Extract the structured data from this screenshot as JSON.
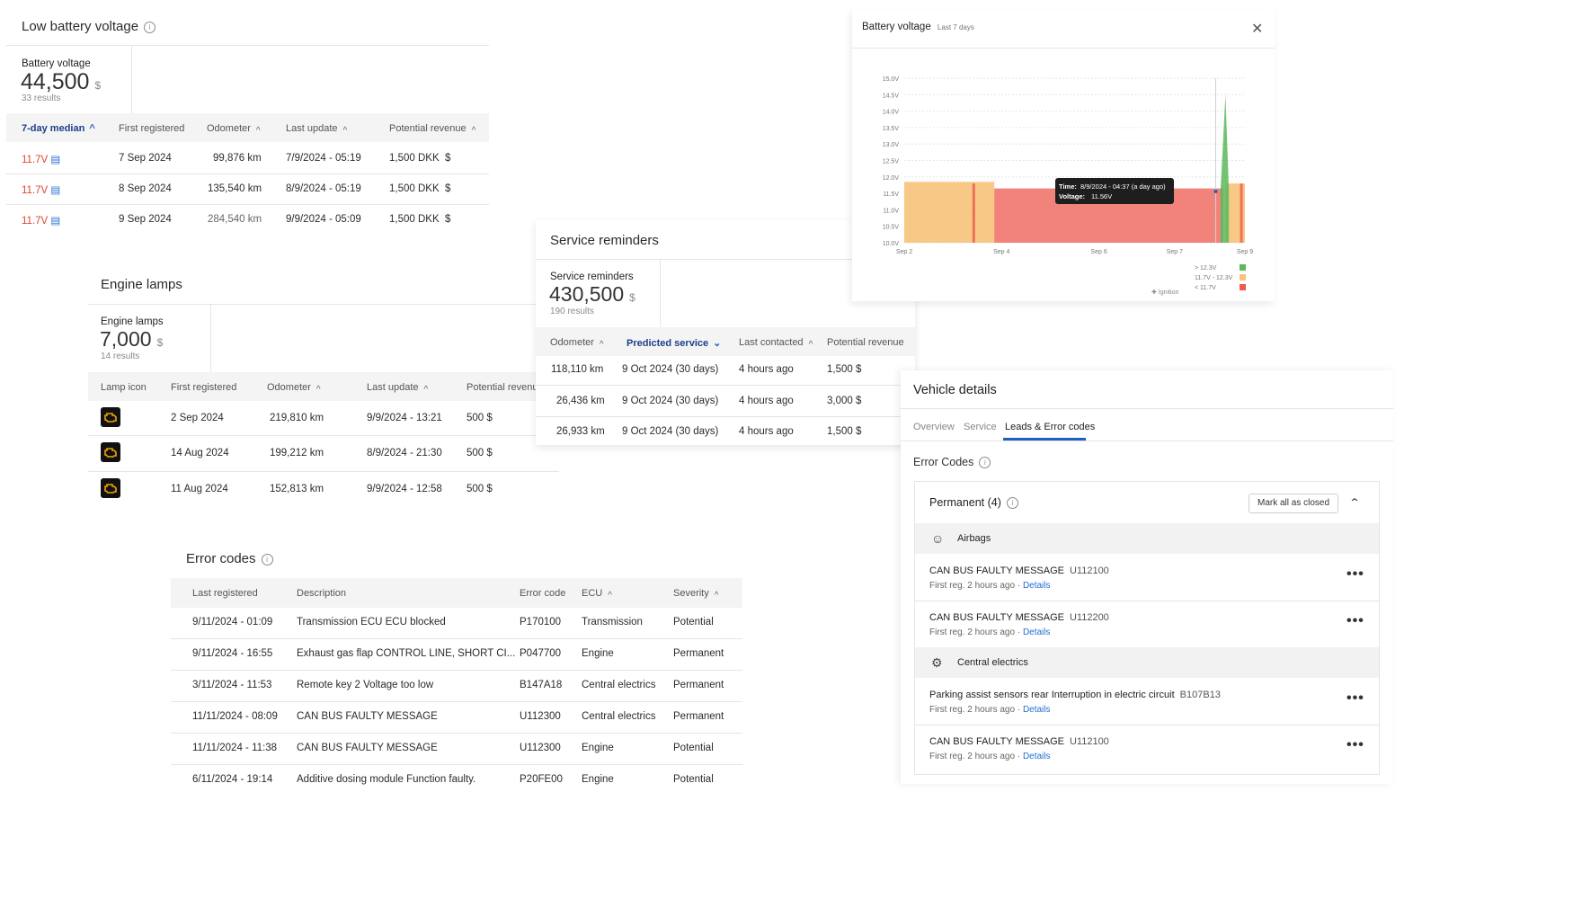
{
  "low_battery": {
    "title": "Low battery voltage",
    "stat_label": "Battery voltage",
    "stat_value": "44,500",
    "stat_unit": "$",
    "stat_sub": "33 results",
    "headers": [
      "7-day median",
      "First registered",
      "Odometer",
      "Last update",
      "Potential revenue"
    ],
    "rows": [
      {
        "median": "11.7V",
        "first": "7 Sep 2024",
        "odo": "99,876 km",
        "update": "7/9/2024 - 05:19",
        "rev": "1,500 DKK",
        "cur": "$"
      },
      {
        "median": "11.7V",
        "first": "8 Sep 2024",
        "odo": "135,540 km",
        "update": "8/9/2024 - 05:19",
        "rev": "1,500 DKK",
        "cur": "$"
      },
      {
        "median": "11.7V",
        "first": "9 Sep 2024",
        "odo": "284,540 km",
        "update": "9/9/2024 - 05:09",
        "rev": "1,500 DKK",
        "cur": "$"
      }
    ]
  },
  "engine_lamps": {
    "title": "Engine lamps",
    "stat_label": "Engine lamps",
    "stat_value": "7,000",
    "stat_unit": "$",
    "stat_sub": "14 results",
    "headers": [
      "Lamp icon",
      "First registered",
      "Odometer",
      "Last update",
      "Potential revenue"
    ],
    "rows": [
      {
        "first": "2 Sep 2024",
        "odo": "219,810 km",
        "update": "9/9/2024 - 13:21",
        "rev": "500 $"
      },
      {
        "first": "14 Aug 2024",
        "odo": "199,212 km",
        "update": "8/9/2024 - 21:30",
        "rev": "500 $"
      },
      {
        "first": "11 Aug 2024",
        "odo": "152,813 km",
        "update": "9/9/2024 - 12:58",
        "rev": "500 $"
      }
    ]
  },
  "service": {
    "title": "Service reminders",
    "stat_label": "Service reminders",
    "stat_value": "430,500",
    "stat_unit": "$",
    "stat_sub": "190 results",
    "headers": [
      "Odometer",
      "Predicted service",
      "Last contacted",
      "Potential revenue"
    ],
    "rows": [
      {
        "odo": "118,110 km",
        "pred": "9 Oct 2024 (30 days)",
        "contact": "4 hours ago",
        "rev": "1,500 $"
      },
      {
        "odo": "26,436 km",
        "pred": "9 Oct 2024 (30 days)",
        "contact": "4 hours ago",
        "rev": "3,000 $"
      },
      {
        "odo": "26,933 km",
        "pred": "9 Oct 2024 (30 days)",
        "contact": "4 hours ago",
        "rev": "1,500 $"
      }
    ]
  },
  "error_codes": {
    "title": "Error codes",
    "headers": [
      "Last registered",
      "Description",
      "Error code",
      "ECU",
      "Severity"
    ],
    "rows": [
      {
        "date": "9/11/2024 - 01:09",
        "desc": "Transmission ECU ECU blocked",
        "code": "P170100",
        "ecu": "Transmission",
        "sev": "Potential"
      },
      {
        "date": "9/11/2024 - 16:55",
        "desc": "Exhaust gas flap CONTROL LINE, SHORT CI...",
        "code": "P047700",
        "ecu": "Engine",
        "sev": "Permanent"
      },
      {
        "date": "3/11/2024 - 11:53",
        "desc": "Remote key 2 Voltage too low",
        "code": "B147A18",
        "ecu": "Central electrics",
        "sev": "Permanent"
      },
      {
        "date": "11/11/2024 - 08:09",
        "desc": "CAN BUS FAULTY MESSAGE",
        "code": "U112300",
        "ecu": "Central electrics",
        "sev": "Permanent"
      },
      {
        "date": "11/11/2024 - 11:38",
        "desc": "CAN BUS FAULTY MESSAGE",
        "code": "U112300",
        "ecu": "Engine",
        "sev": "Potential"
      },
      {
        "date": "6/11/2024 - 19:14",
        "desc": "Additive dosing module Function faulty.",
        "code": "P20FE00",
        "ecu": "Engine",
        "sev": "Potential"
      }
    ]
  },
  "battery_chart": {
    "title": "Battery voltage",
    "subtitle": "Last 7 days",
    "close_icon": "close-icon",
    "tooltip_time_label": "Time:",
    "tooltip_time": "8/9/2024 - 04:37 (a day ago)",
    "tooltip_voltage_label": "Voltage:",
    "tooltip_voltage": "11.56V",
    "legend": [
      {
        "label": "> 12.3V",
        "color": "#5cb85c"
      },
      {
        "label": "11.7V - 12.3V",
        "color": "#f7c27a"
      },
      {
        "label": "< 11.7V",
        "color": "#ee5a4e"
      }
    ],
    "ignition_label": "Ignition"
  },
  "chart_data": {
    "type": "area",
    "title": "Battery voltage",
    "subtitle": "Last 7 days",
    "ylim": [
      10.0,
      15.0
    ],
    "yticks": [
      "15.0V",
      "14.5V",
      "14.0V",
      "13.5V",
      "13.0V",
      "12.5V",
      "12.0V",
      "11.5V",
      "11.0V",
      "10.5V",
      "10.0V"
    ],
    "xticks": [
      "Sep 2",
      "Sep 4",
      "Sep 6",
      "Sep 7",
      "Sep 9"
    ],
    "grid": true,
    "legend_position": "bottom-right",
    "series": [
      {
        "name": "11.7V - 12.3V",
        "color": "#f7c27a",
        "x": [
          0,
          1.4,
          1.85,
          6.6,
          7.0
        ],
        "values": [
          11.85,
          11.8,
          11.8,
          11.8,
          11.75
        ]
      },
      {
        "name": "< 11.7V",
        "color": "#ee5a4e",
        "x": [
          1.85,
          3.0,
          5.0,
          6.6
        ],
        "values": [
          11.65,
          11.62,
          11.6,
          11.6
        ]
      },
      {
        "name": "> 12.3V",
        "color": "#5cb85c",
        "x": [
          6.55,
          6.6,
          6.65
        ],
        "values": [
          11.6,
          14.5,
          11.6
        ]
      }
    ]
  },
  "vehicle": {
    "title": "Vehicle details",
    "tabs": [
      "Overview",
      "Service",
      "Leads & Error codes"
    ],
    "section": "Error Codes",
    "group_title": "Permanent (4)",
    "mark_closed": "Mark all as closed",
    "categories": [
      {
        "name": "Airbags",
        "icon": "airbag-icon",
        "items": [
          {
            "title": "CAN BUS FAULTY MESSAGE",
            "code": "U112100",
            "meta": "First reg. 2 hours ago · ",
            "link": "Details"
          },
          {
            "title": "CAN BUS FAULTY MESSAGE",
            "code": "U112200",
            "meta": "First reg. 2 hours ago · ",
            "link": "Details"
          }
        ]
      },
      {
        "name": "Central electrics",
        "icon": "central-electrics-icon",
        "items": [
          {
            "title": "Parking assist sensors rear Interruption in electric circuit",
            "code": "B107B13",
            "meta": "First reg. 2 hours ago · ",
            "link": "Details"
          },
          {
            "title": "CAN BUS FAULTY MESSAGE",
            "code": "U112100",
            "meta": "First reg. 2 hours ago · ",
            "link": "Details"
          }
        ]
      }
    ]
  }
}
